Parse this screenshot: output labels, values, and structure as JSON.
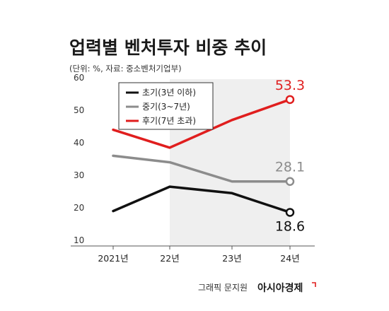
{
  "chart_data": {
    "type": "line",
    "title": "업력별 벤처투자 비중 추이",
    "subtitle": "(단위: %, 자료: 중소벤처기업부)",
    "categories": [
      "2021년",
      "22년",
      "23년",
      "24년"
    ],
    "yticks": [
      10,
      20,
      30,
      40,
      50,
      60
    ],
    "ylim": [
      10,
      60
    ],
    "series": [
      {
        "name": "초기(3년 이하)",
        "values": [
          19.0,
          26.5,
          24.5,
          18.6
        ],
        "color": "#111111",
        "end_label": "18.6"
      },
      {
        "name": "중기(3~7년)",
        "values": [
          36.0,
          34.0,
          28.1,
          28.1
        ],
        "color": "#8c8c8c",
        "end_label": "28.1"
      },
      {
        "name": "후기(7년 초과)",
        "values": [
          44.0,
          38.5,
          47.0,
          53.3
        ],
        "color": "#e01e1e",
        "end_label": "53.3"
      }
    ],
    "grid": false,
    "legend": "top-left"
  },
  "credit": {
    "author": "그래픽 문지원",
    "brand": "아시아경제"
  }
}
